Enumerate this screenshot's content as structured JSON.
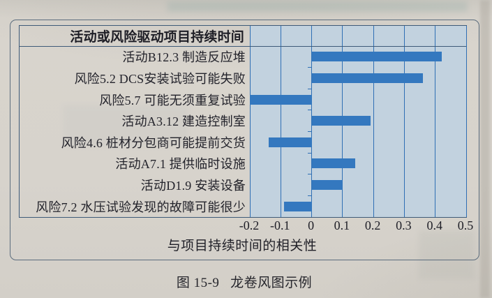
{
  "figure": {
    "caption": "图 15-9   龙卷风图示例"
  },
  "chart_data": {
    "type": "bar",
    "orientation": "horizontal",
    "title": "活动或风险驱动项目持续时间",
    "xlabel": "与项目持续时间的相关性",
    "xlim": [
      -0.2,
      0.5
    ],
    "xticks": [
      -0.2,
      -0.1,
      0,
      0.1,
      0.2,
      0.3,
      0.4,
      0.5
    ],
    "xtick_labels": [
      "-0.2",
      "-0.1",
      "0",
      "0.1",
      "0.2",
      "0.3",
      "0.4",
      "0.5"
    ],
    "grid": true,
    "legend": false,
    "categories": [
      "活动B12.3 制造反应堆",
      "风险5.2 DCS安装试验可能失败",
      "风险5.7 可能无须重复试验",
      "活动A3.12 建造控制室",
      "风险4.6 桩材分包商可能提前交货",
      "活动A7.1 提供临时设施",
      "活动D1.9 安装设备",
      "风险7.2 水压试验发现的故障可能很少"
    ],
    "values": [
      0.42,
      0.36,
      -0.2,
      0.19,
      -0.14,
      0.14,
      0.1,
      -0.09
    ]
  },
  "colors": {
    "bar": "#3478bf",
    "plot_background": "#c2d2df",
    "gridline": "#2f6fb4",
    "frame_border": "#5b6c7d",
    "chart_border": "#3e5a78",
    "text": "#23232b",
    "paper": "#d7d3cc"
  }
}
